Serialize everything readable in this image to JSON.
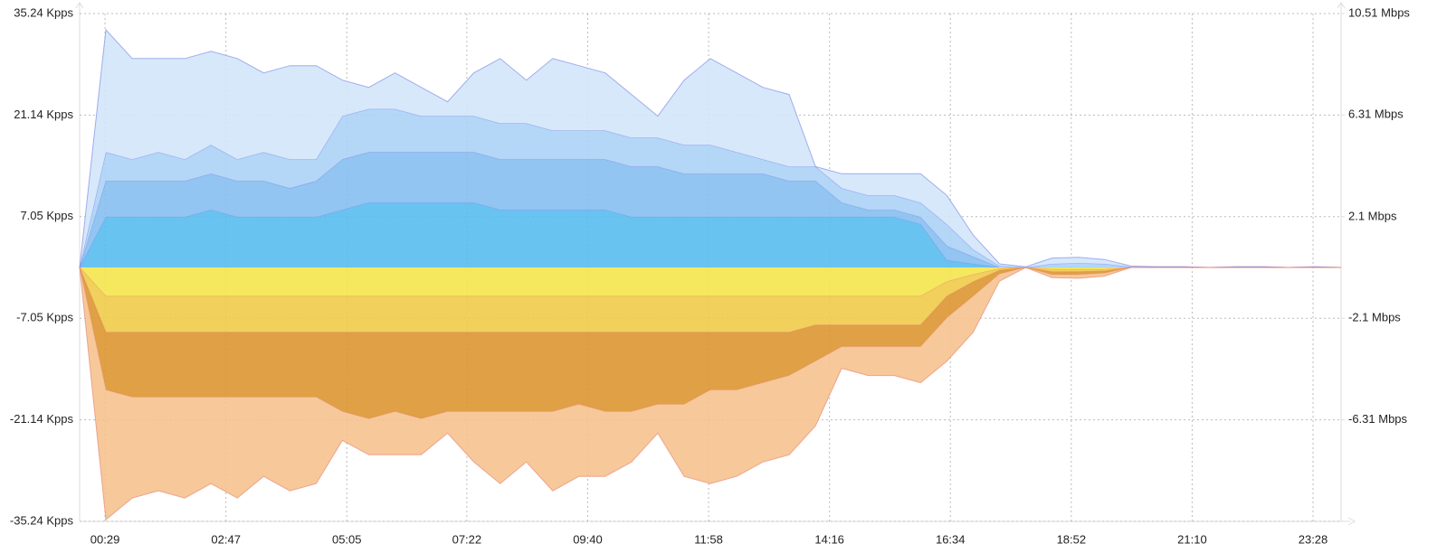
{
  "chart_data": {
    "type": "area",
    "stacked": true,
    "grid": true,
    "x": [
      0,
      30,
      60,
      90,
      120,
      150,
      180,
      210,
      240,
      270,
      300,
      330,
      360,
      390,
      420,
      450,
      480,
      510,
      540,
      570,
      600,
      630,
      660,
      690,
      720,
      750,
      780,
      810,
      840,
      870,
      900,
      930,
      960,
      990,
      1020,
      1050,
      1080,
      1110,
      1140,
      1170,
      1200,
      1230,
      1260,
      1290,
      1320,
      1350,
      1380,
      1410,
      1440
    ],
    "xlim": [
      0,
      1440
    ],
    "xticks": [
      {
        "value": 29,
        "label": "00:29"
      },
      {
        "value": 167,
        "label": "02:47"
      },
      {
        "value": 305,
        "label": "05:05"
      },
      {
        "value": 442,
        "label": "07:22"
      },
      {
        "value": 580,
        "label": "09:40"
      },
      {
        "value": 718,
        "label": "11:58"
      },
      {
        "value": 856,
        "label": "14:16"
      },
      {
        "value": 994,
        "label": "16:34"
      },
      {
        "value": 1132,
        "label": "18:52"
      },
      {
        "value": 1270,
        "label": "21:10"
      },
      {
        "value": 1408,
        "label": "23:28"
      }
    ],
    "ylim": [
      -35.24,
      35.24
    ],
    "yticks": [
      {
        "value": 35.24,
        "label": "35.24 Kpps"
      },
      {
        "value": 21.14,
        "label": "21.14 Kpps"
      },
      {
        "value": 7.05,
        "label": "7.05 Kpps"
      },
      {
        "value": -7.05,
        "label": "-7.05 Kpps"
      },
      {
        "value": -21.14,
        "label": "-21.14 Kpps"
      },
      {
        "value": -35.24,
        "label": "-35.24 Kpps"
      }
    ],
    "y2lim": [
      -10.51,
      10.51
    ],
    "y2ticks": [
      {
        "value": 10.51,
        "label": "10.51 Mbps"
      },
      {
        "value": 6.31,
        "label": "6.31 Mbps"
      },
      {
        "value": 2.1,
        "label": "2.1 Mbps"
      },
      {
        "value": -2.1,
        "label": "-2.1 Mbps"
      },
      {
        "value": -6.31,
        "label": "-6.31 Mbps"
      }
    ],
    "series": [
      {
        "color": "#58bdee",
        "values": [
          0,
          7,
          7,
          7,
          7,
          8,
          7,
          7,
          7,
          7,
          8,
          9,
          9,
          9,
          9,
          9,
          8,
          8,
          8,
          8,
          8,
          7,
          7,
          7,
          7,
          7,
          7,
          7,
          7,
          7,
          7,
          7,
          6,
          1,
          0.5,
          0,
          0,
          0,
          0,
          0,
          0,
          0,
          0,
          0,
          0,
          0,
          0,
          0,
          0
        ]
      },
      {
        "color": "#86bff0",
        "values": [
          0,
          5,
          5,
          5,
          5,
          5,
          5,
          5,
          4,
          5,
          7,
          7,
          7,
          7,
          7,
          7,
          7,
          7,
          7,
          7,
          7,
          7,
          7,
          6,
          6,
          6,
          6,
          5,
          5,
          2,
          1,
          1,
          1,
          2,
          1,
          0,
          0,
          0,
          0,
          0,
          0,
          0,
          0,
          0,
          0,
          0,
          0,
          0,
          0
        ]
      },
      {
        "color": "#acd2f6",
        "values": [
          0,
          4,
          3,
          4,
          3,
          4,
          3,
          4,
          4,
          3,
          6,
          6,
          6,
          5,
          5,
          5,
          5,
          5,
          4,
          4,
          4,
          4,
          4,
          4,
          4,
          3,
          2,
          2,
          2,
          2,
          2,
          2,
          2,
          3,
          1,
          0.2,
          0,
          0.5,
          0.6,
          0.5,
          0.1,
          0.1,
          0.1,
          0,
          0.1,
          0.1,
          0,
          0.1,
          0
        ]
      },
      {
        "color": "#d3e5fb",
        "values": [
          0,
          17,
          14,
          13,
          14,
          13,
          14,
          11,
          13,
          13,
          5,
          3,
          5,
          4,
          2,
          6,
          9,
          6,
          10,
          9,
          8,
          6,
          3,
          9,
          12,
          11,
          10,
          10,
          0,
          2,
          3,
          3,
          4,
          4,
          2,
          0.3,
          0.1,
          0.8,
          0.8,
          0.6,
          0.1,
          0,
          0,
          0,
          0,
          0,
          0,
          0,
          0
        ]
      },
      {
        "color": "#f5e54c",
        "values": [
          0,
          -4,
          -4,
          -4,
          -4,
          -4,
          -4,
          -4,
          -4,
          -4,
          -4,
          -4,
          -4,
          -4,
          -4,
          -4,
          -4,
          -4,
          -4,
          -4,
          -4,
          -4,
          -4,
          -4,
          -4,
          -4,
          -4,
          -4,
          -4,
          -4,
          -4,
          -4,
          -4,
          -2,
          -1,
          -0.2,
          0,
          -0.3,
          -0.3,
          -0.3,
          0,
          0,
          0,
          0,
          0,
          0,
          0,
          0,
          0
        ]
      },
      {
        "color": "#efcb4a",
        "values": [
          0,
          -5,
          -5,
          -5,
          -5,
          -5,
          -5,
          -5,
          -5,
          -5,
          -5,
          -5,
          -5,
          -5,
          -5,
          -5,
          -5,
          -5,
          -5,
          -5,
          -5,
          -5,
          -5,
          -5,
          -5,
          -5,
          -5,
          -5,
          -4,
          -4,
          -4,
          -4,
          -4,
          -2,
          -1,
          -0.2,
          0,
          -0.3,
          -0.3,
          -0.2,
          0,
          0,
          0,
          0,
          0,
          0,
          0,
          0,
          0
        ]
      },
      {
        "color": "#db9632",
        "values": [
          0,
          -8,
          -9,
          -9,
          -9,
          -9,
          -9,
          -9,
          -9,
          -9,
          -11,
          -12,
          -11,
          -12,
          -11,
          -11,
          -11,
          -11,
          -11,
          -10,
          -11,
          -11,
          -10,
          -10,
          -8,
          -8,
          -7,
          -6,
          -5,
          -3,
          -3,
          -3,
          -3,
          -3,
          -2,
          -0.5,
          0,
          -0.4,
          -0.4,
          -0.3,
          0,
          0,
          0,
          0,
          0,
          0,
          0,
          0,
          0
        ]
      },
      {
        "color": "#f6c28e",
        "values": [
          0,
          -18,
          -14,
          -13,
          -14,
          -12,
          -14,
          -11,
          -13,
          -12,
          -4,
          -5,
          -6,
          -5,
          -3,
          -7,
          -10,
          -7,
          -11,
          -10,
          -9,
          -7,
          -4,
          -10,
          -13,
          -12,
          -11,
          -11,
          -9,
          -3,
          -4,
          -4,
          -5,
          -6,
          -5,
          -1,
          0,
          -0.4,
          -0.5,
          -0.4,
          0,
          0,
          0,
          0,
          0,
          0,
          0,
          0,
          0
        ]
      }
    ]
  }
}
